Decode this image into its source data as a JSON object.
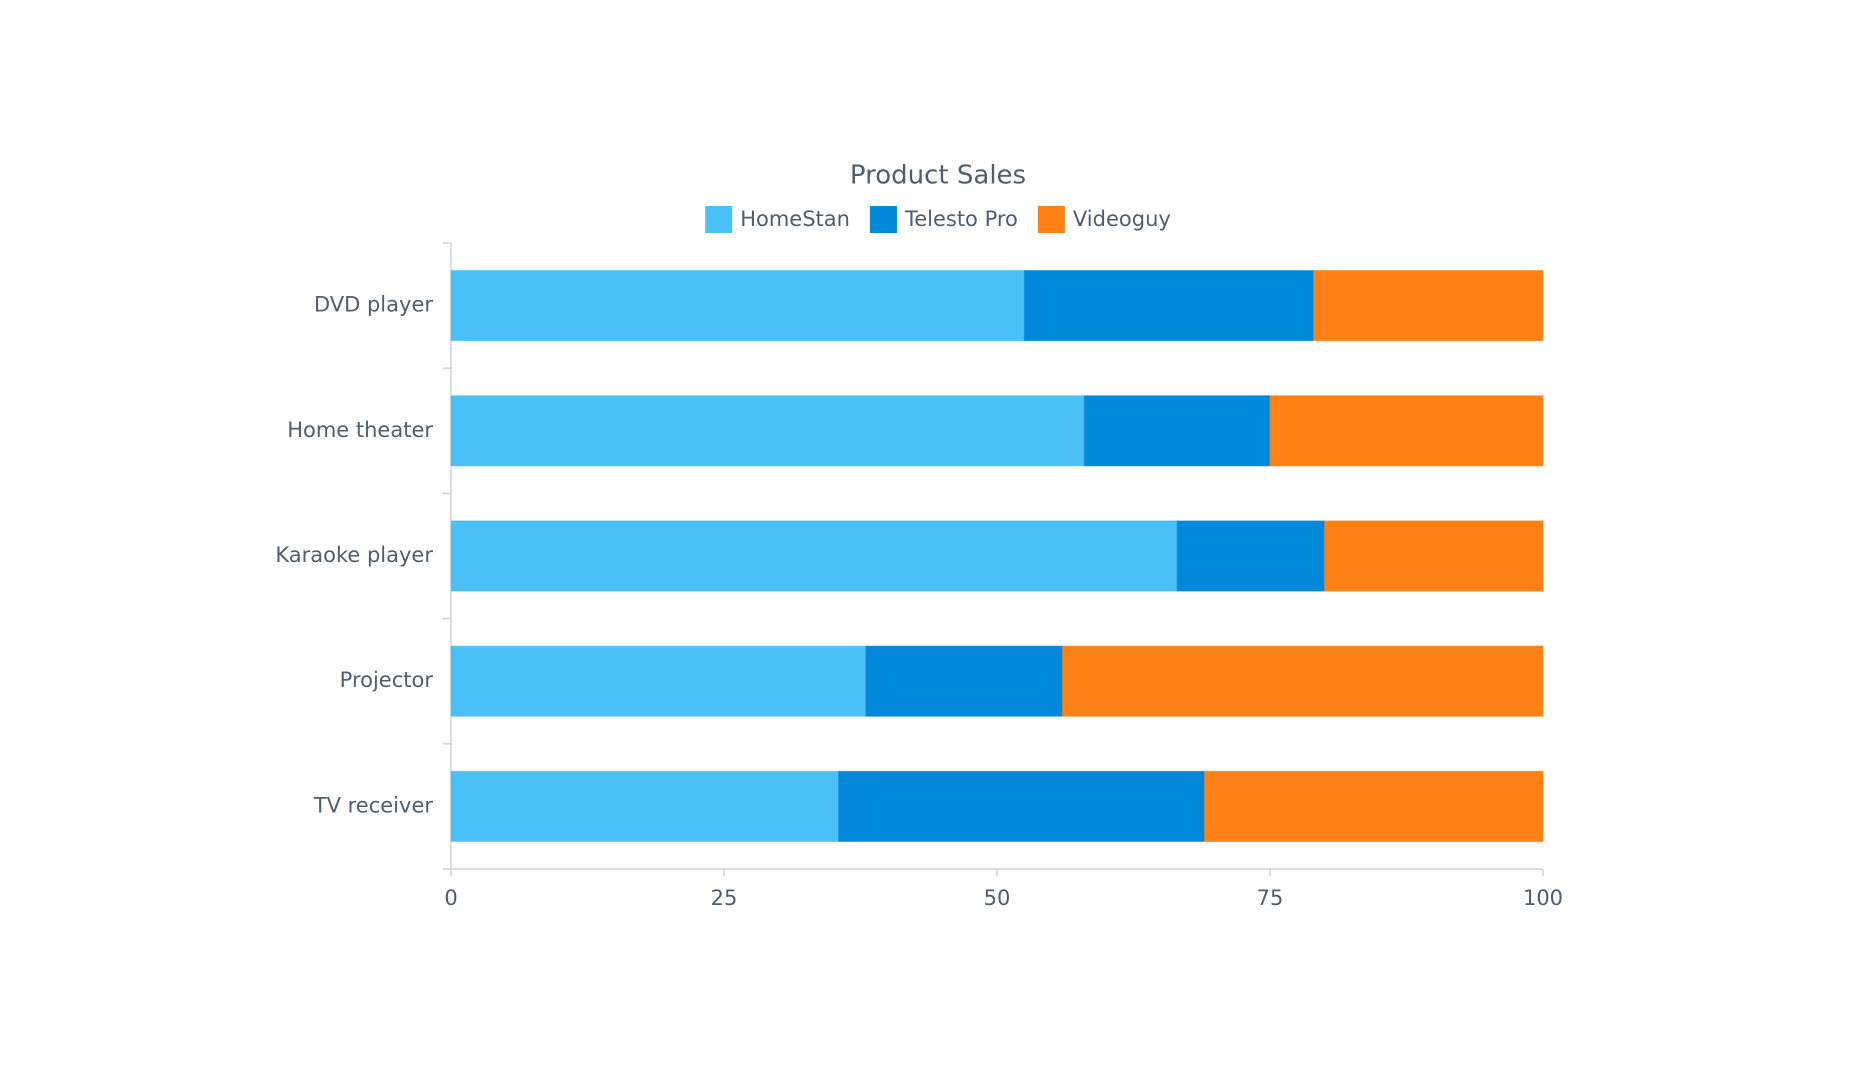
{
  "chart_data": {
    "type": "stacked-bar-horizontal",
    "title": "Product Sales",
    "categories": [
      "DVD player",
      "Home theater",
      "Karaoke player",
      "Projector",
      "TV receiver"
    ],
    "series": [
      {
        "name": "HomeStan",
        "color": "#4bc0f7",
        "values": [
          52.5,
          58,
          66.5,
          38,
          35.5
        ]
      },
      {
        "name": "Telesto Pro",
        "color": "#0288db",
        "values": [
          26.5,
          17,
          13.5,
          18,
          33.5
        ]
      },
      {
        "name": "Videoguy",
        "color": "#fd8117",
        "values": [
          21,
          25,
          20,
          44,
          31
        ]
      }
    ],
    "xlim": [
      0,
      100
    ],
    "xticks": [
      0,
      25,
      50,
      75,
      100
    ],
    "legend": "top"
  }
}
